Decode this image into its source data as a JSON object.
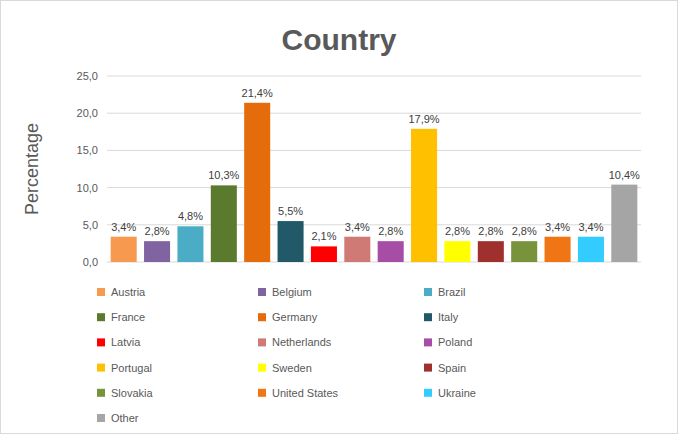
{
  "chart_data": {
    "type": "bar",
    "title": "Country",
    "y_label": "Percentage",
    "categories": [
      "Austria",
      "Belgium",
      "Brazil",
      "France",
      "Germany",
      "Italy",
      "Latvia",
      "Netherlands",
      "Poland",
      "Portugal",
      "Sweden",
      "Spain",
      "Slovakia",
      "United States",
      "Ukraine",
      "Other"
    ],
    "values": [
      3.4,
      2.8,
      4.8,
      10.3,
      21.4,
      5.5,
      2.1,
      3.4,
      2.8,
      17.9,
      2.8,
      2.8,
      2.8,
      3.4,
      3.4,
      10.4
    ],
    "value_labels": [
      "3,4%",
      "2,8%",
      "4,8%",
      "10,3%",
      "21,4%",
      "5,5%",
      "2,1%",
      "3,4%",
      "2,8%",
      "17,9%",
      "2,8%",
      "2,8%",
      "2,8%",
      "3,4%",
      "3,4%",
      "10,4%"
    ],
    "colors": [
      "#f79a4f",
      "#8064a2",
      "#4bacc6",
      "#5a7a2e",
      "#e46c0a",
      "#215968",
      "#ff0000",
      "#d07a75",
      "#a64da6",
      "#ffc000",
      "#ffff00",
      "#a0302e",
      "#77933c",
      "#f07515",
      "#33ccff",
      "#a5a5a5"
    ],
    "ylim": [
      0,
      25
    ],
    "yticks": [
      {
        "value": 0,
        "label": "0,0"
      },
      {
        "value": 5,
        "label": "5,0"
      },
      {
        "value": 10,
        "label": "10,0"
      },
      {
        "value": 15,
        "label": "15,0"
      },
      {
        "value": 20,
        "label": "20,0"
      },
      {
        "value": 25,
        "label": "25,0"
      }
    ],
    "grid": true,
    "data_labels": true,
    "legend": "bottom",
    "tick_labels": "y"
  }
}
